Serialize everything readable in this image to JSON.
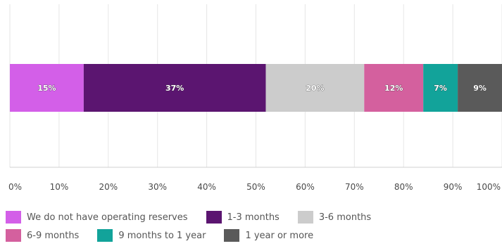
{
  "chart_data": {
    "type": "bar",
    "orientation": "horizontal-stacked",
    "title": "",
    "xlabel": "",
    "ylabel": "",
    "xlim": [
      0,
      100
    ],
    "x_ticks": [
      "0%",
      "10%",
      "20%",
      "30%",
      "40%",
      "50%",
      "60%",
      "70%",
      "80%",
      "90%",
      "100%"
    ],
    "grid": "vertical",
    "legend_placement": "bottom",
    "series": [
      {
        "name": "We do not have operating reserves",
        "value": 15,
        "label": "15%",
        "color": "#d35fe8"
      },
      {
        "name": "1-3 months",
        "value": 37,
        "label": "37%",
        "color": "#5b1570"
      },
      {
        "name": "3-6 months",
        "value": 20,
        "label": "20%",
        "color": "#cccccc"
      },
      {
        "name": "6-9 months",
        "value": 12,
        "label": "12%",
        "color": "#d4609e"
      },
      {
        "name": "9 months to 1 year",
        "value": 7,
        "label": "7%",
        "color": "#12a39a"
      },
      {
        "name": "1 year or more",
        "value": 9,
        "label": "9%",
        "color": "#5a5a5a"
      }
    ]
  }
}
